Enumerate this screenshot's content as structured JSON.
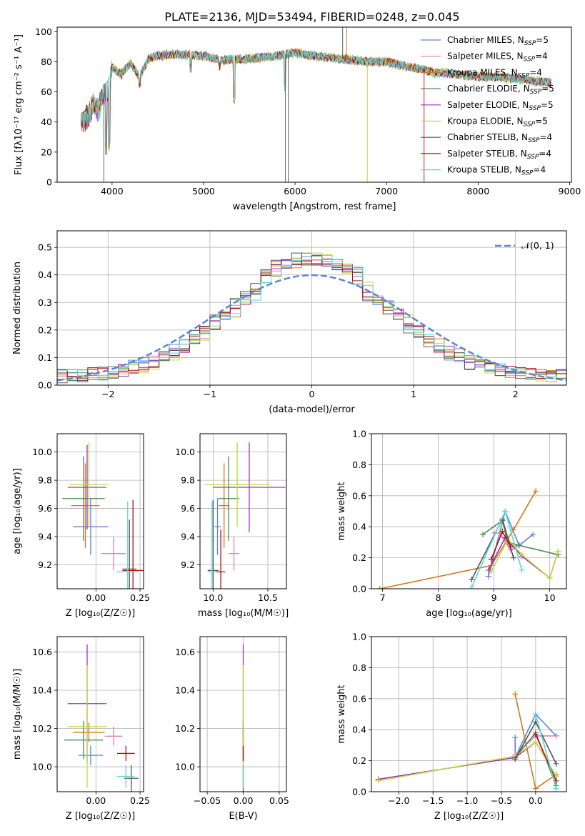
{
  "title": "PLATE=2136, MJD=53494, FIBERID=0248, z=0.045",
  "colors": {
    "models": [
      "#5b86d6",
      "#e07fb5",
      "#d07a1d",
      "#4e8a4e",
      "#9a33c6",
      "#c9d63b",
      "#555555",
      "#b01010",
      "#5fd6d6"
    ],
    "gauss": "#5b86d6",
    "grid": "#b0b0b0"
  },
  "chart_data": [
    {
      "id": "spectrum",
      "type": "line",
      "xlabel": "wavelength [Angstrom, rest frame]",
      "ylabel": "Flux [fλ10⁻¹⁷ erg cm⁻² s⁻¹ A⁻¹]",
      "xlim": [
        3400,
        9020
      ],
      "ylim": [
        0,
        103
      ],
      "xticks": [
        4000,
        5000,
        6000,
        7000,
        8000,
        9000
      ],
      "yticks": [
        0,
        20,
        40,
        60,
        80,
        100
      ],
      "grid": false,
      "legend_position": "top-right",
      "legend": [
        "Chabrier MILES, N_SSP=5",
        "Salpeter MILES, N_SSP=4",
        "Kroupa MILES, N_SSP=4",
        "Chabrier ELODIE, N_SSP=5",
        "Salpeter ELODIE, N_SSP=5",
        "Kroupa ELODIE, N_SSP=5",
        "Chabrier STELIB, N_SSP=4",
        "Salpeter STELIB, N_SSP=4",
        "Kroupa STELIB, N_SSP=4"
      ],
      "continuum": {
        "x": [
          3660,
          3700,
          3750,
          3800,
          3850,
          3900,
          3950,
          4000,
          4100,
          4200,
          4300,
          4400,
          4500,
          4700,
          5000,
          5200,
          5500,
          5800,
          6000,
          6200,
          6500,
          6800,
          7000,
          7200,
          7400,
          7500,
          7700,
          8000,
          8200,
          8500,
          8800
        ],
        "y": [
          40,
          42,
          45,
          52,
          48,
          58,
          60,
          76,
          72,
          79,
          70,
          82,
          84,
          85,
          84,
          81,
          82,
          84,
          86,
          84,
          82,
          80,
          80,
          77,
          75,
          73,
          72,
          70,
          70,
          68,
          66
        ]
      },
      "absorption_lines": [
        {
          "x": 3934,
          "y": 18
        },
        {
          "x": 3969,
          "y": 20
        },
        {
          "x": 4102,
          "y": 68
        },
        {
          "x": 4300,
          "y": 62
        },
        {
          "x": 4861,
          "y": 72
        },
        {
          "x": 5175,
          "y": 73
        },
        {
          "x": 5335,
          "y": 52
        },
        {
          "x": 5890,
          "y": 60
        }
      ],
      "spikes": [
        {
          "x": 3910,
          "y": 0
        },
        {
          "x": 5895,
          "y": 0
        },
        {
          "x": 5925,
          "y": 0
        },
        {
          "x": 6520,
          "y": 103
        },
        {
          "x": 6565,
          "y": 103
        },
        {
          "x": 6790,
          "y": 0
        },
        {
          "x": 7410,
          "y": 0
        }
      ]
    },
    {
      "id": "residuals",
      "type": "histogram",
      "xlabel": "(data-model)/error",
      "ylabel": "Normed distribution",
      "xlim": [
        -2.5,
        2.5
      ],
      "ylim": [
        0,
        0.56
      ],
      "xticks": [
        -2,
        -1,
        0,
        1,
        2
      ],
      "yticks": [
        0.0,
        0.1,
        0.2,
        0.3,
        0.4,
        0.5
      ],
      "grid": true,
      "legend": [
        "𝒩(0, 1)"
      ],
      "legend_position": "top-right",
      "bin_width": 0.1
    },
    {
      "id": "age_vs_Z",
      "type": "errorbar",
      "xlabel": "Z [log₁₀(Z/Z☉)]",
      "ylabel": "age  [log₁₀(age/yr)]",
      "xlim": [
        -0.22,
        0.27
      ],
      "ylim": [
        9.03,
        10.13
      ],
      "xticks": [
        0.0,
        0.25
      ],
      "yticks": [
        9.2,
        9.4,
        9.6,
        9.8,
        10.0
      ],
      "grid": true,
      "points": [
        {
          "x": -0.03,
          "xerr": 0.1,
          "y": 9.47,
          "yerr": 0.2
        },
        {
          "x": 0.1,
          "xerr": 0.07,
          "y": 9.28,
          "yerr": 0.12
        },
        {
          "x": -0.06,
          "xerr": 0.08,
          "y": 9.62,
          "yerr": 0.3
        },
        {
          "x": -0.07,
          "xerr": 0.12,
          "y": 9.67,
          "yerr": 0.3
        },
        {
          "x": -0.05,
          "xerr": 0.11,
          "y": 9.75,
          "yerr": 0.3
        },
        {
          "x": -0.04,
          "xerr": 0.11,
          "y": 9.77,
          "yerr": 0.3
        },
        {
          "x": 0.19,
          "xerr": 0.04,
          "y": 9.17,
          "yerr": 0.35
        },
        {
          "x": 0.21,
          "xerr": 0.06,
          "y": 9.16,
          "yerr": 0.5
        },
        {
          "x": 0.18,
          "xerr": 0.06,
          "y": 9.15,
          "yerr": 0.5
        }
      ]
    },
    {
      "id": "age_vs_mass",
      "type": "errorbar",
      "xlabel": "mass [log₁₀(M/M☉)]",
      "ylabel": "",
      "xlim": [
        9.88,
        10.67
      ],
      "ylim": [
        9.03,
        10.13
      ],
      "xticks": [
        10.0,
        10.5
      ],
      "yticks": [
        9.2,
        9.4,
        9.6,
        9.8,
        10.0
      ],
      "grid": true,
      "points": [
        {
          "x": 10.04,
          "xerr": 0.03,
          "y": 9.47,
          "yerr": 0.2
        },
        {
          "x": 10.19,
          "xerr": 0.05,
          "y": 9.28,
          "yerr": 0.12
        },
        {
          "x": 10.1,
          "xerr": 0.05,
          "y": 9.62,
          "yerr": 0.3
        },
        {
          "x": 10.14,
          "xerr": 0.1,
          "y": 9.67,
          "yerr": 0.3
        },
        {
          "x": 10.33,
          "xerr": 0.33,
          "y": 9.75,
          "yerr": 0.32
        },
        {
          "x": 10.22,
          "xerr": 0.3,
          "y": 9.77,
          "yerr": 0.3
        },
        {
          "x": 10.0,
          "xerr": 0.05,
          "y": 9.16,
          "yerr": 0.5
        },
        {
          "x": 10.07,
          "xerr": 0.04,
          "y": 9.15,
          "yerr": 0.3
        },
        {
          "x": 9.99,
          "xerr": 0.04,
          "y": 9.15,
          "yerr": 0.5
        }
      ]
    },
    {
      "id": "weight_vs_age",
      "type": "line",
      "xlabel": "age  [log₁₀(age/yr)]",
      "ylabel": "mass weight",
      "xlim": [
        6.8,
        10.3
      ],
      "ylim": [
        0,
        1
      ],
      "xticks": [
        7,
        8,
        9,
        10
      ],
      "yticks": [
        0.0,
        0.2,
        0.4,
        0.6,
        0.8,
        1.0
      ],
      "grid": true,
      "series": [
        {
          "x": [
            8.9,
            9.2,
            9.45,
            9.7
          ],
          "y": [
            0.08,
            0.5,
            0.28,
            0.35
          ]
        },
        {
          "x": [
            9.0,
            9.1,
            9.3,
            9.4
          ],
          "y": [
            0.36,
            0.36,
            0.25,
            0.27
          ]
        },
        {
          "x": [
            6.95,
            8.95,
            9.35,
            9.75
          ],
          "y": [
            0.0,
            0.15,
            0.38,
            0.63
          ]
        },
        {
          "x": [
            8.8,
            9.15,
            9.25,
            9.45,
            10.15
          ],
          "y": [
            0.35,
            0.44,
            0.3,
            0.28,
            0.22
          ]
        },
        {
          "x": [
            8.9,
            9.2,
            9.5,
            10.0,
            10.15
          ],
          "y": [
            0.12,
            0.33,
            0.21,
            0.07,
            0.24
          ]
        },
        {
          "x": [
            8.95,
            9.25,
            9.5,
            10.0,
            10.15
          ],
          "y": [
            0.11,
            0.32,
            0.22,
            0.07,
            0.24
          ]
        },
        {
          "x": [
            8.6,
            9.15,
            9.35
          ],
          "y": [
            0.06,
            0.45,
            0.2
          ]
        },
        {
          "x": [
            8.95,
            9.15,
            9.3
          ],
          "y": [
            0.19,
            0.37,
            0.27
          ]
        },
        {
          "x": [
            8.6,
            9.2,
            9.5
          ],
          "y": [
            0.01,
            0.5,
            0.12
          ]
        }
      ]
    },
    {
      "id": "mass_vs_Z",
      "type": "errorbar",
      "xlabel": "Z [log₁₀(Z/Z☉)]",
      "ylabel": "mass [log₁₀(M/M☉)]",
      "xlim": [
        -0.22,
        0.27
      ],
      "ylim": [
        9.87,
        10.68
      ],
      "xticks": [
        0.0,
        0.25
      ],
      "yticks": [
        10.0,
        10.2,
        10.4,
        10.6
      ],
      "grid": true,
      "points": [
        {
          "x": -0.03,
          "xerr": 0.07,
          "y": 10.06,
          "yerr": 0.05
        },
        {
          "x": 0.1,
          "xerr": 0.05,
          "y": 10.16,
          "yerr": 0.05
        },
        {
          "x": -0.04,
          "xerr": 0.09,
          "y": 10.18,
          "yerr": 0.05
        },
        {
          "x": -0.07,
          "xerr": 0.11,
          "y": 10.14,
          "yerr": 0.1
        },
        {
          "x": -0.05,
          "xerr": 0.11,
          "y": 10.33,
          "yerr": 0.31
        },
        {
          "x": -0.05,
          "xerr": 0.11,
          "y": 10.21,
          "yerr": 0.32
        },
        {
          "x": 0.2,
          "xerr": 0.04,
          "y": 9.94,
          "yerr": 0.07
        },
        {
          "x": 0.17,
          "xerr": 0.05,
          "y": 10.07,
          "yerr": 0.04
        },
        {
          "x": 0.17,
          "xerr": 0.05,
          "y": 9.95,
          "yerr": 0.06
        }
      ]
    },
    {
      "id": "mass_vs_ebv",
      "type": "errorbar",
      "xlabel": "E(B-V)",
      "ylabel": "",
      "xlim": [
        -0.06,
        0.06
      ],
      "ylim": [
        9.87,
        10.68
      ],
      "xticks": [
        -0.05,
        0.0,
        0.05
      ],
      "yticks": [
        10.0,
        10.2,
        10.4,
        10.6
      ],
      "grid": true,
      "points": [
        {
          "x": 0.0,
          "xerr": 0.0,
          "y": 10.06,
          "yerr": 0.05
        },
        {
          "x": 0.0,
          "xerr": 0.0,
          "y": 10.16,
          "yerr": 0.05
        },
        {
          "x": 0.0,
          "xerr": 0.0,
          "y": 10.18,
          "yerr": 0.05
        },
        {
          "x": 0.0,
          "xerr": 0.0,
          "y": 10.14,
          "yerr": 0.1
        },
        {
          "x": 0.0,
          "xerr": 0.0,
          "y": 10.33,
          "yerr": 0.31
        },
        {
          "x": 0.0,
          "xerr": 0.0,
          "y": 10.21,
          "yerr": 0.32
        },
        {
          "x": 0.0,
          "xerr": 0.0,
          "y": 9.94,
          "yerr": 0.07
        },
        {
          "x": 0.0,
          "xerr": 0.0,
          "y": 10.07,
          "yerr": 0.04
        },
        {
          "x": 0.0,
          "xerr": 0.0,
          "y": 9.95,
          "yerr": 0.06
        }
      ]
    },
    {
      "id": "weight_vs_Z",
      "type": "line",
      "xlabel": "Z [log₁₀(Z/Z☉)]",
      "ylabel": "mass weight",
      "xlim": [
        -2.4,
        0.45
      ],
      "ylim": [
        0,
        1
      ],
      "xticks": [
        -2.0,
        -1.5,
        -1.0,
        -0.5,
        0.0
      ],
      "yticks": [
        0.0,
        0.2,
        0.4,
        0.6,
        0.8,
        1.0
      ],
      "grid": true,
      "series": [
        {
          "x": [
            -0.3,
            -0.3,
            0.0,
            0.3
          ],
          "y": [
            0.35,
            0.22,
            0.5,
            0.36
          ]
        },
        {
          "x": [
            -0.3,
            0.0,
            0.3
          ],
          "y": [
            0.24,
            0.36,
            0.36
          ]
        },
        {
          "x": [
            -0.3,
            0.0,
            0.3
          ],
          "y": [
            0.63,
            0.02,
            0.11
          ]
        },
        {
          "x": [
            -0.3,
            0.0,
            0.3
          ],
          "y": [
            0.22,
            0.38,
            0.04
          ]
        },
        {
          "x": [
            -2.3,
            -0.3,
            0.0,
            0.3
          ],
          "y": [
            0.08,
            0.22,
            0.32,
            0.1
          ]
        },
        {
          "x": [
            -2.3,
            -0.3,
            0.0,
            0.3
          ],
          "y": [
            0.07,
            0.23,
            0.32,
            0.1
          ]
        },
        {
          "x": [
            -0.3,
            0.0,
            0.3
          ],
          "y": [
            0.21,
            0.45,
            0.18
          ]
        },
        {
          "x": [
            0.0,
            0.3
          ],
          "y": [
            0.37,
            0.07
          ]
        },
        {
          "x": [
            0.0,
            0.3
          ],
          "y": [
            0.5,
            0.02
          ]
        }
      ]
    }
  ]
}
